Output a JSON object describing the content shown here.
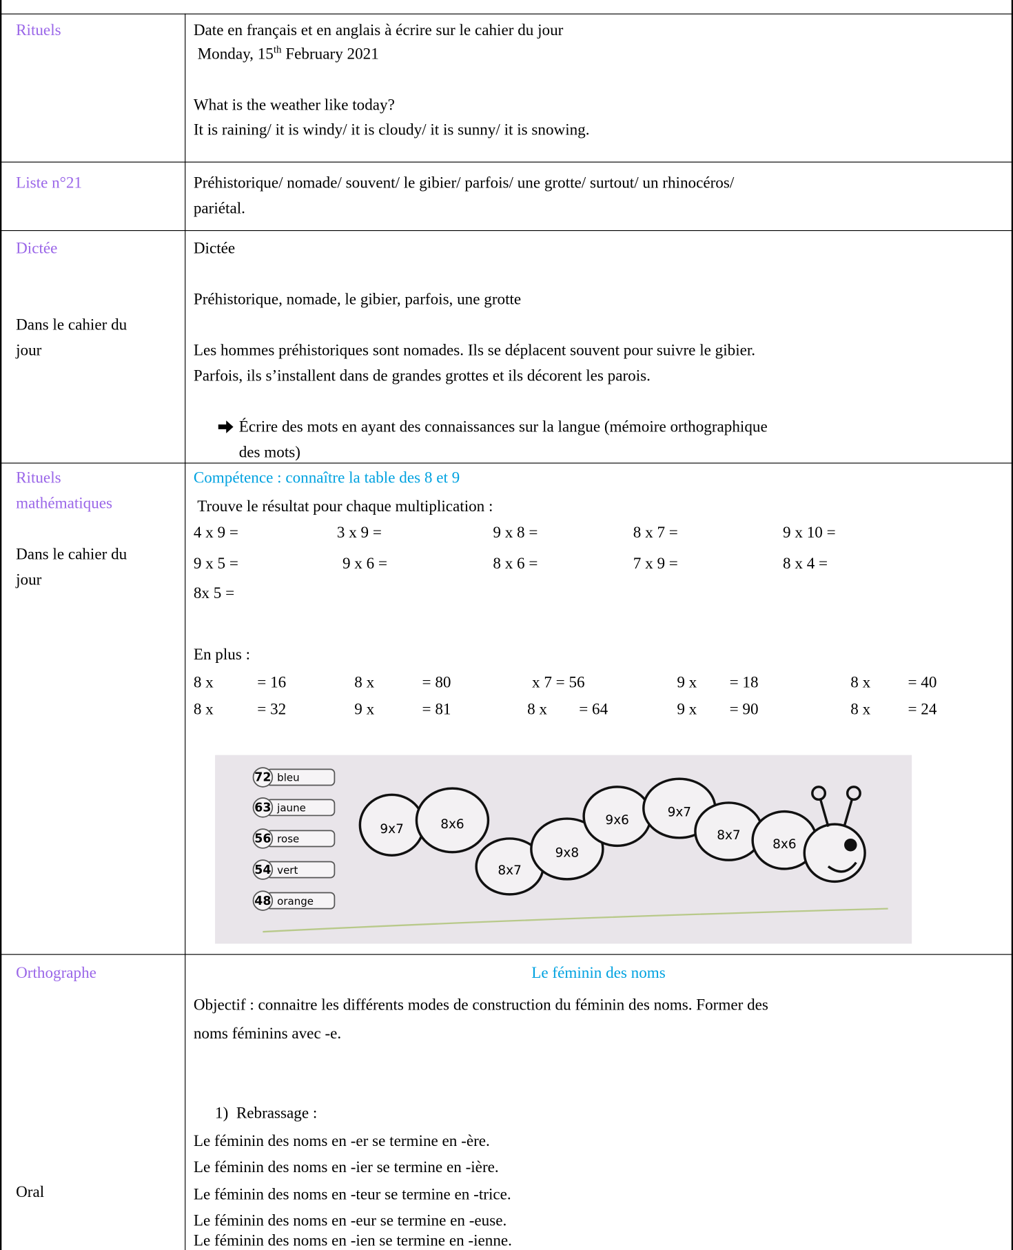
{
  "rows": [
    {
      "label": [
        "Rituels"
      ],
      "content": [
        "Date en français et en anglais à écrire sur le cahier du jour",
        "What is the weather like today?",
        "It is raining/ it is windy/ it is cloudy/ it is sunny/ it is snowing."
      ],
      "date_parts": [
        " Monday, 15",
        "th",
        " February 2021"
      ]
    },
    {
      "label": [
        "Liste n°21"
      ],
      "content": [
        "Préhistorique/ nomade/ souvent/ le gibier/ parfois/ une grotte/ surtout/ un rhinocéros/",
        "pariétal."
      ]
    },
    {
      "label": [
        "Dictée",
        "Dans le cahier du",
        "jour"
      ],
      "content": [
        "Dictée",
        "Préhistorique, nomade, le gibier, parfois, une grotte",
        "Les hommes préhistoriques sont nomades. Ils se déplacent souvent pour suivre le gibier.",
        "Parfois, ils s’installent dans de grandes grottes et ils décorent les parois.",
        "Écrire des mots en ayant des connaissances sur la langue (mémoire orthographique",
        "des mots)"
      ]
    },
    {
      "label": [
        "Rituels",
        "mathématiques",
        "Dans le cahier du",
        "jour"
      ],
      "content": [
        "Compétence : connaître la table des 8 et 9",
        " Trouve le résultat pour chaque multiplication :",
        "En plus :"
      ],
      "multiplications": [
        [
          "4 x 9 =",
          "3 x 9 =",
          "9 x 8 =",
          "8 x 7 =",
          "9 x 10 ="
        ],
        [
          "9 x 5 =",
          "9 x 6 =",
          "8 x 6 =",
          "7 x 9 =",
          "8 x 4 ="
        ],
        [
          "8x 5 ="
        ]
      ],
      "extra": [
        [
          "8 x",
          "= 16",
          "8 x",
          "= 80",
          "x 7 = 56",
          "9 x",
          "= 18",
          "8 x",
          "= 40"
        ],
        [
          "8 x",
          "= 32",
          "9 x",
          "= 81",
          "8 x",
          "= 64",
          "9 x",
          "= 90",
          "8 x",
          "= 24"
        ]
      ],
      "image": {
        "legend": [
          [
            "72",
            "bleu"
          ],
          [
            "63",
            "jaune"
          ],
          [
            "56",
            "rose"
          ],
          [
            "54",
            "vert"
          ],
          [
            "48",
            "orange"
          ]
        ],
        "bodies": [
          "9x7",
          "8x6",
          "8x7",
          "9x8",
          "9x6",
          "9x7",
          "8x7",
          "8x6"
        ]
      }
    },
    {
      "label": [
        "Orthographe",
        "Oral"
      ],
      "title": "Le féminin des noms",
      "content": [
        "Objectif : connaitre les différents modes de construction du féminin des noms. Former des",
        "noms féminins avec -e.",
        "1)  Rebrassage :",
        "Le féminin des noms en -er se termine en -ère.",
        "Le féminin des noms en -ier se termine en -ière.",
        "Le féminin des noms en -teur se termine en -trice.",
        "Le féminin des noms en -eur se termine en -euse.",
        "Le féminin des noms en -ien se termine en -ienne."
      ]
    }
  ]
}
